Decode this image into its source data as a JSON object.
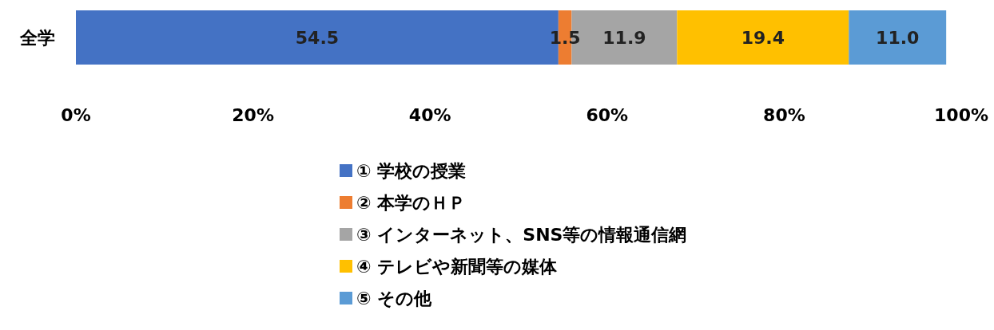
{
  "chart_data": {
    "type": "bar",
    "orientation": "horizontal",
    "stacked": true,
    "categories": [
      "全学"
    ],
    "series": [
      {
        "name": "① 学校の授業",
        "color": "#4472c4",
        "values": [
          54.5
        ]
      },
      {
        "name": "② 本学のＨＰ",
        "color": "#ed7d31",
        "values": [
          1.5
        ]
      },
      {
        "name": "③ インターネット、SNS等の情報通信網",
        "color": "#a5a5a5",
        "values": [
          11.9
        ]
      },
      {
        "name": "④ テレビや新聞等の媒体",
        "color": "#ffc000",
        "values": [
          19.4
        ]
      },
      {
        "name": "⑤ その他",
        "color": "#5b9bd5",
        "values": [
          11.0
        ],
        "value_labels": [
          "11.0"
        ]
      }
    ],
    "xlim": [
      0,
      100
    ],
    "xticks": [
      {
        "value": 0,
        "label": "0%"
      },
      {
        "value": 20,
        "label": "20%"
      },
      {
        "value": 40,
        "label": "40%"
      },
      {
        "value": 60,
        "label": "60%"
      },
      {
        "value": 80,
        "label": "80%"
      },
      {
        "value": 100,
        "label": "100%"
      }
    ],
    "data_labels": true,
    "grid": false,
    "legend": "bottom"
  }
}
